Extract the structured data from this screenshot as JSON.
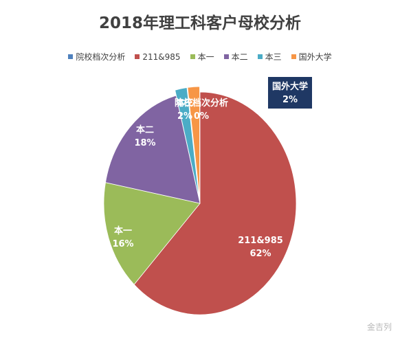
{
  "chart_data": {
    "type": "pie",
    "title": "2018年理工科客户母校分析",
    "legend_position": "top",
    "slices": [
      {
        "name": "院校档次分析",
        "value": 0,
        "label": "0%",
        "color": "#4f81bd"
      },
      {
        "name": "211&985",
        "value": 62,
        "label": "62%",
        "color": "#c0504d"
      },
      {
        "name": "本一",
        "value": 16,
        "label": "16%",
        "color": "#9bbb59"
      },
      {
        "name": "本二",
        "value": 18,
        "label": "18%",
        "color": "#8064a2"
      },
      {
        "name": "本三",
        "value": 2,
        "label": "2%",
        "color": "#4bacc6"
      },
      {
        "name": "国外大学",
        "value": 2,
        "label": "2%",
        "color": "#f79646"
      }
    ]
  },
  "watermark": "金吉列"
}
